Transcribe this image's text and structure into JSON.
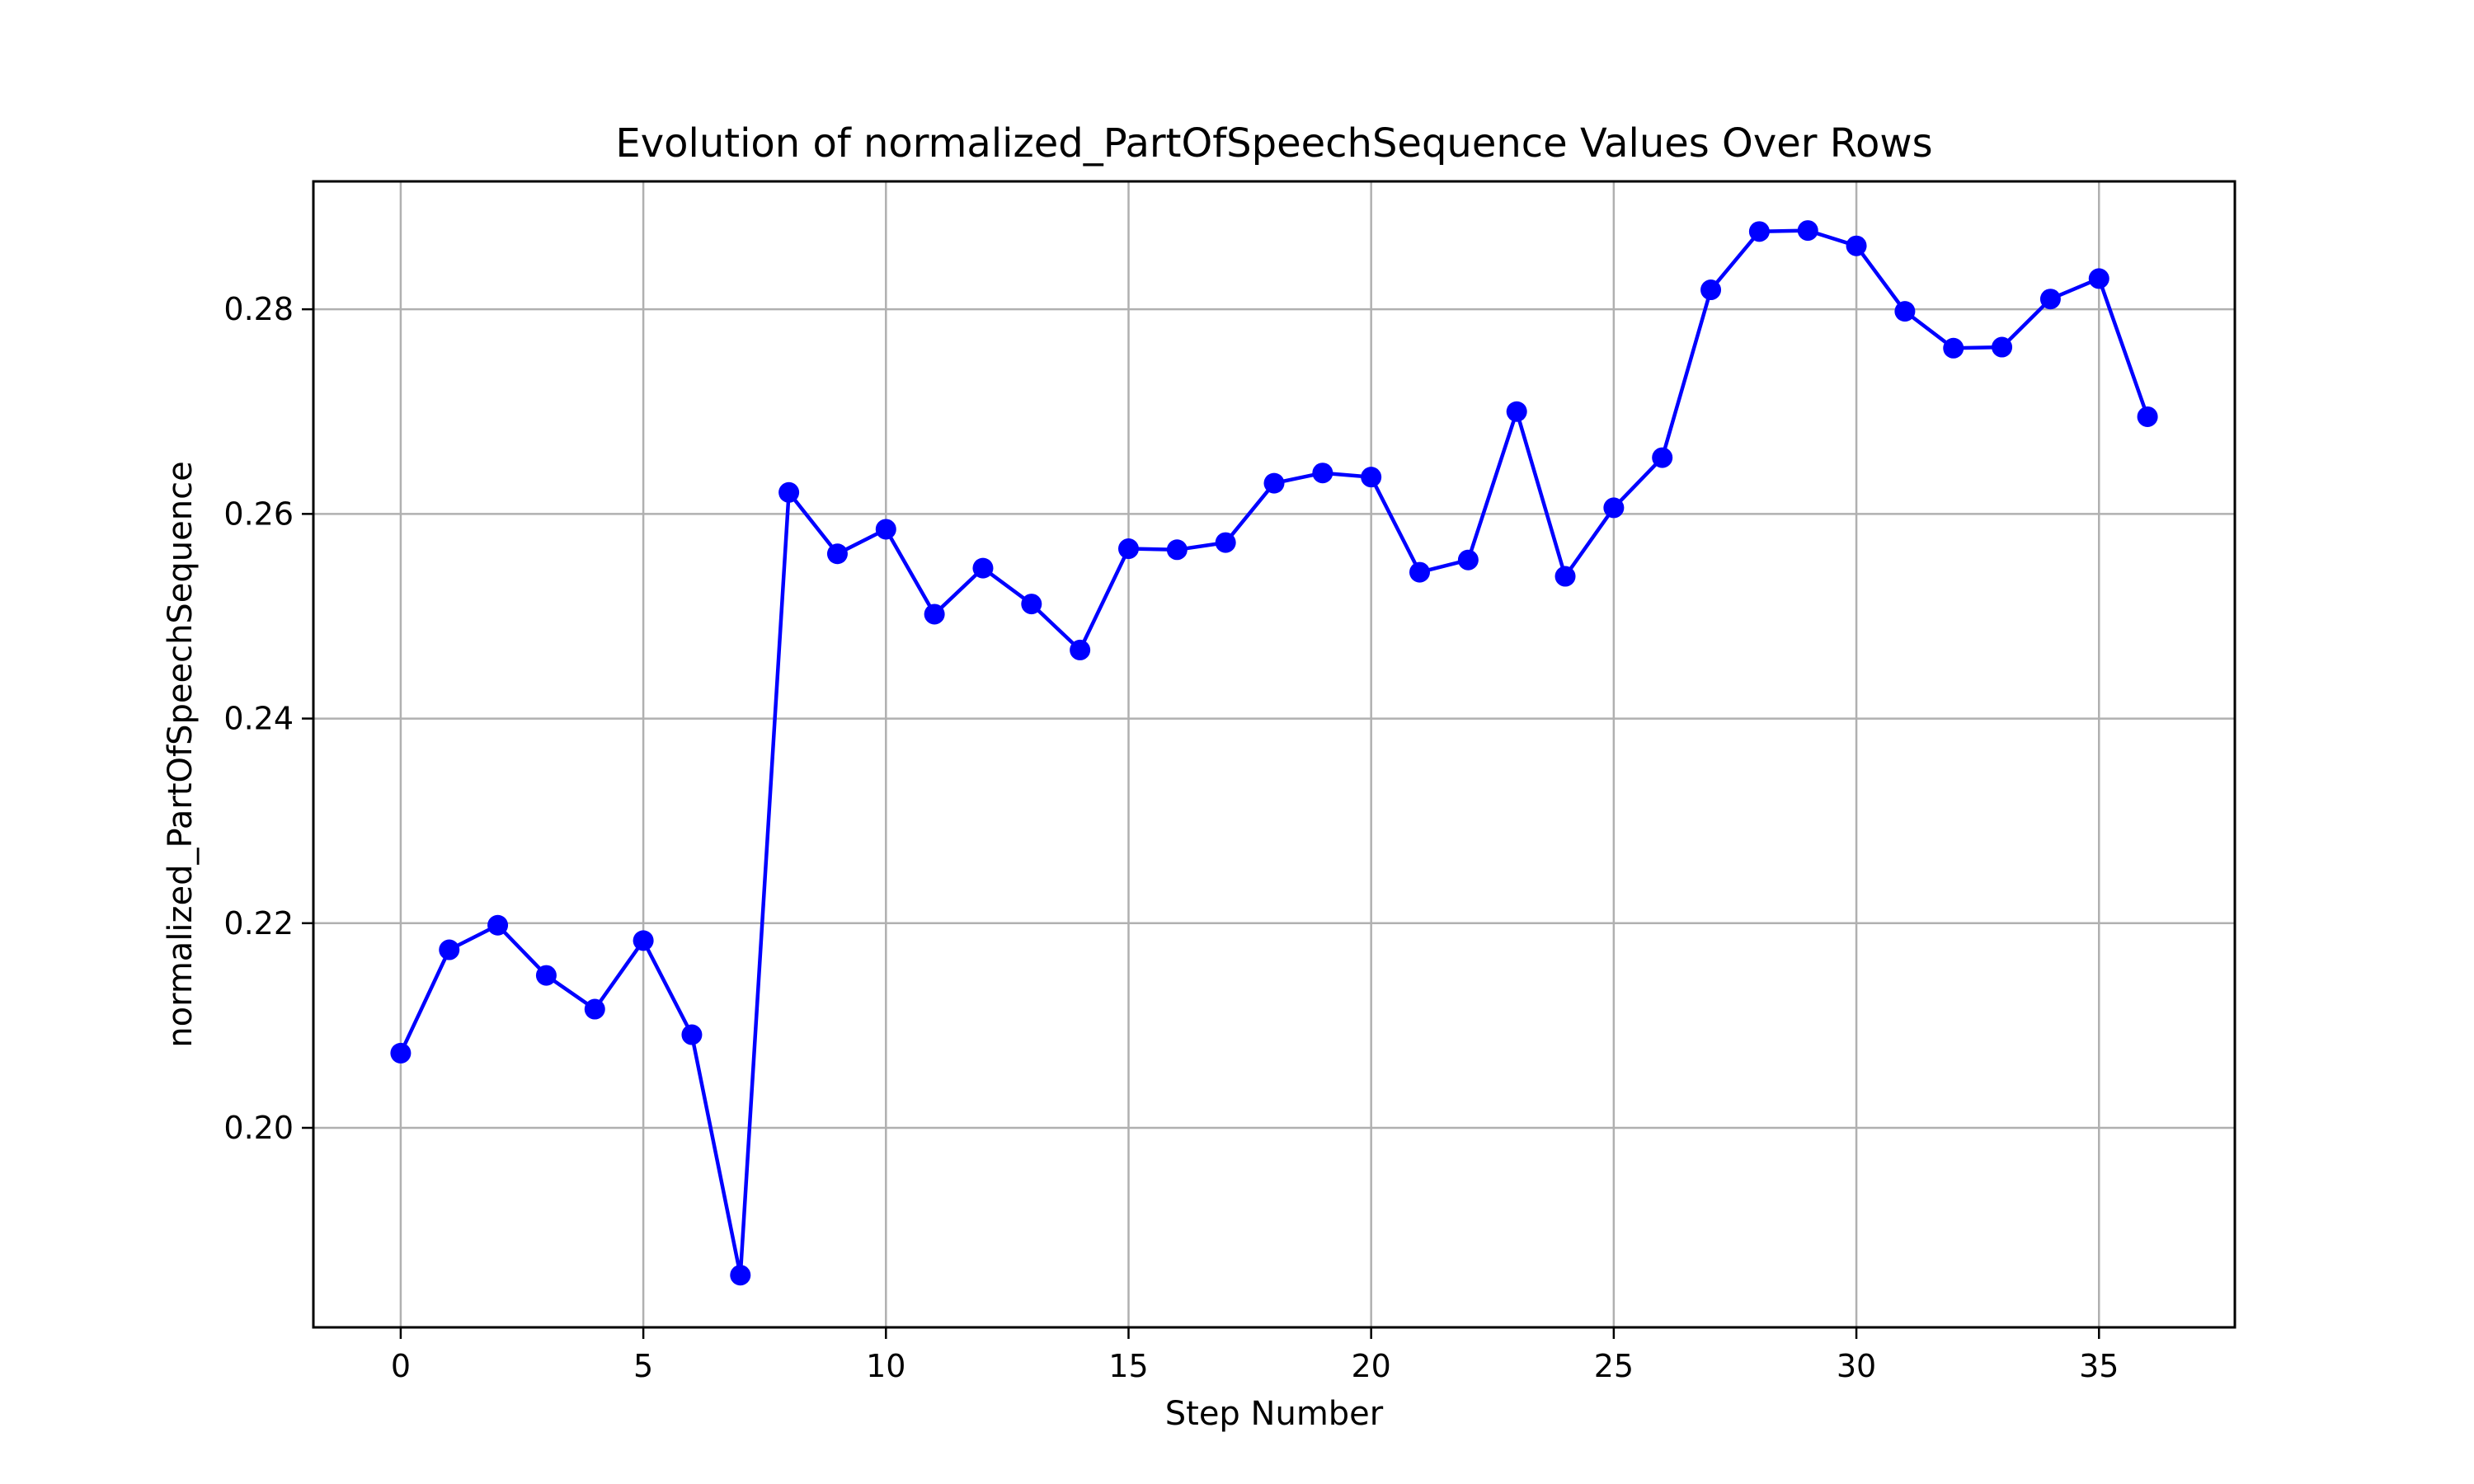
{
  "chart_data": {
    "type": "line",
    "title": "Evolution of normalized_PartOfSpeechSequence Values Over Rows",
    "xlabel": "Step Number",
    "ylabel": "normalized_PartOfSpeechSequence",
    "xlim": [
      -1.8,
      37.8
    ],
    "ylim": [
      0.1805,
      0.2925
    ],
    "xticks": [
      0,
      5,
      10,
      15,
      20,
      25,
      30,
      35
    ],
    "xtick_labels": [
      "0",
      "5",
      "10",
      "15",
      "20",
      "25",
      "30",
      "35"
    ],
    "yticks": [
      0.2,
      0.22,
      0.24,
      0.26,
      0.28
    ],
    "ytick_labels": [
      "0.20",
      "0.22",
      "0.24",
      "0.26",
      "0.28"
    ],
    "grid": true,
    "color": "#0000ff",
    "marker": "circle",
    "x": [
      0,
      1,
      2,
      3,
      4,
      5,
      6,
      7,
      8,
      9,
      10,
      11,
      12,
      13,
      14,
      15,
      16,
      17,
      18,
      19,
      20,
      21,
      22,
      23,
      24,
      25,
      26,
      27,
      28,
      29,
      30,
      31,
      32,
      33,
      34,
      35,
      36
    ],
    "values": [
      0.2073,
      0.2174,
      0.2198,
      0.2149,
      0.2116,
      0.2183,
      0.2091,
      0.1856,
      0.2621,
      0.2561,
      0.2585,
      0.2502,
      0.2547,
      0.2512,
      0.2467,
      0.2566,
      0.2565,
      0.2572,
      0.263,
      0.264,
      0.2636,
      0.2543,
      0.2555,
      0.27,
      0.2539,
      0.2606,
      0.2655,
      0.2819,
      0.2876,
      0.2877,
      0.2862,
      0.2798,
      0.2762,
      0.2763,
      0.281,
      0.283,
      0.2695
    ]
  }
}
